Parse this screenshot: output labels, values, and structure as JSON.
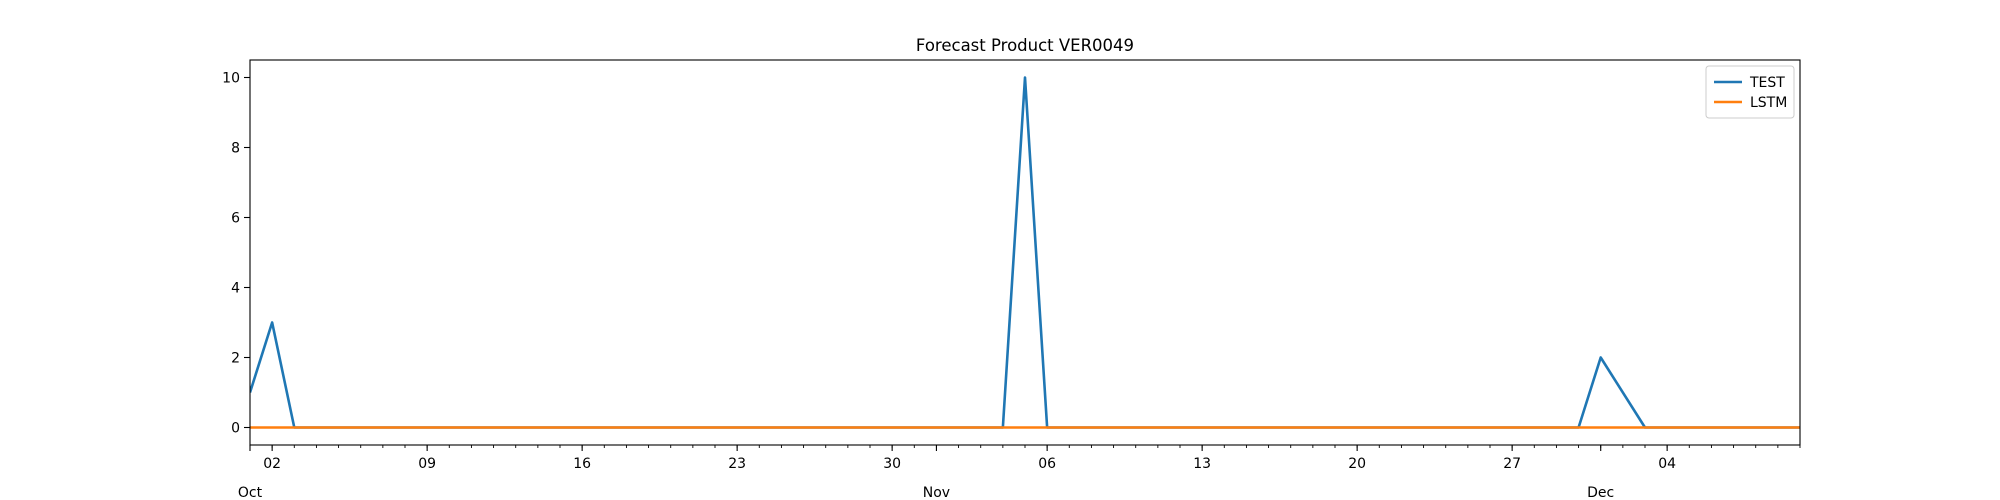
{
  "chart_data": {
    "type": "line",
    "title": "Forecast Product VER0049",
    "xlabel": "",
    "ylabel": "",
    "x_start": "2023-10-01",
    "x_end": "2023-12-10",
    "ylim": [
      -0.5,
      10.5
    ],
    "y_ticks": [
      0,
      2,
      4,
      6,
      8,
      10
    ],
    "x_day_ticks": [
      {
        "date": "2023-10-02",
        "label": "02"
      },
      {
        "date": "2023-10-09",
        "label": "09"
      },
      {
        "date": "2023-10-16",
        "label": "16"
      },
      {
        "date": "2023-10-23",
        "label": "23"
      },
      {
        "date": "2023-10-30",
        "label": "30"
      },
      {
        "date": "2023-11-06",
        "label": "06"
      },
      {
        "date": "2023-11-13",
        "label": "13"
      },
      {
        "date": "2023-11-20",
        "label": "20"
      },
      {
        "date": "2023-11-27",
        "label": "27"
      },
      {
        "date": "2023-12-04",
        "label": "04"
      }
    ],
    "x_month_ticks": [
      {
        "date": "2023-10-01",
        "label": "Oct"
      },
      {
        "date": "2023-11-01",
        "label": "Nov"
      },
      {
        "date": "2023-12-01",
        "label": "Dec"
      }
    ],
    "grid": false,
    "legend_position": "top-right",
    "series": [
      {
        "name": "TEST",
        "color": "#1f77b4",
        "points": [
          [
            "2023-10-01",
            1
          ],
          [
            "2023-10-02",
            3
          ],
          [
            "2023-10-03",
            0
          ],
          [
            "2023-11-04",
            0
          ],
          [
            "2023-11-05",
            10
          ],
          [
            "2023-11-06",
            0
          ],
          [
            "2023-11-30",
            0
          ],
          [
            "2023-12-01",
            2
          ],
          [
            "2023-12-03",
            0
          ],
          [
            "2023-12-10",
            0
          ]
        ]
      },
      {
        "name": "LSTM",
        "color": "#ff7f0e",
        "points": [
          [
            "2023-10-01",
            0
          ],
          [
            "2023-12-10",
            0
          ]
        ]
      }
    ]
  }
}
